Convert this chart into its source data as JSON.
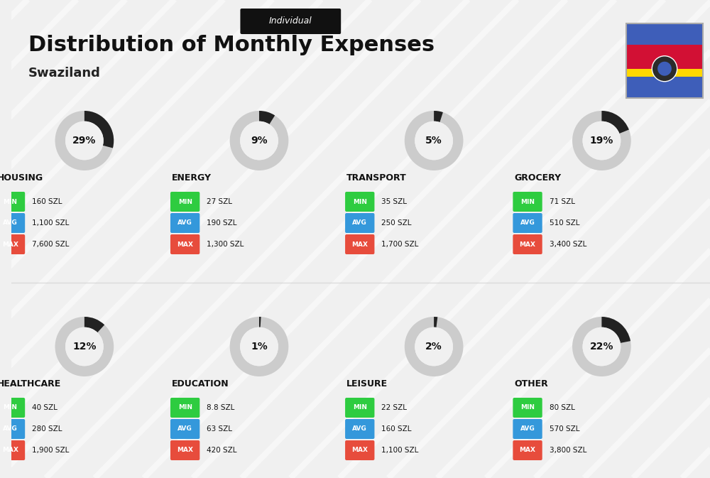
{
  "title": "Distribution of Monthly Expenses",
  "subtitle": "Swaziland",
  "tag": "Individual",
  "bg_color": "#f0f0f0",
  "categories": [
    {
      "name": "HOUSING",
      "pct": 29,
      "icon": "🏢",
      "min_val": "160 SZL",
      "avg_val": "1,100 SZL",
      "max_val": "7,600 SZL"
    },
    {
      "name": "ENERGY",
      "pct": 9,
      "icon": "⚡",
      "min_val": "27 SZL",
      "avg_val": "190 SZL",
      "max_val": "1,300 SZL"
    },
    {
      "name": "TRANSPORT",
      "pct": 5,
      "icon": "🚌",
      "min_val": "35 SZL",
      "avg_val": "250 SZL",
      "max_val": "1,700 SZL"
    },
    {
      "name": "GROCERY",
      "pct": 19,
      "icon": "🛒",
      "min_val": "71 SZL",
      "avg_val": "510 SZL",
      "max_val": "3,400 SZL"
    },
    {
      "name": "HEALTHCARE",
      "pct": 12,
      "icon": "❤️",
      "min_val": "40 SZL",
      "avg_val": "280 SZL",
      "max_val": "1,900 SZL"
    },
    {
      "name": "EDUCATION",
      "pct": 1,
      "icon": "🎓",
      "min_val": "8.8 SZL",
      "avg_val": "63 SZL",
      "max_val": "420 SZL"
    },
    {
      "name": "LEISURE",
      "pct": 2,
      "icon": "🛍️",
      "min_val": "22 SZL",
      "avg_val": "160 SZL",
      "max_val": "1,100 SZL"
    },
    {
      "name": "OTHER",
      "pct": 22,
      "icon": "👜",
      "min_val": "80 SZL",
      "avg_val": "570 SZL",
      "max_val": "3,800 SZL"
    }
  ],
  "color_min": "#2ecc40",
  "color_avg": "#3498db",
  "color_max": "#e74c3c",
  "label_color": "#ffffff",
  "arc_color_dark": "#222222",
  "arc_color_light": "#cccccc",
  "title_color": "#111111",
  "subtitle_color": "#222222",
  "tag_bg": "#111111",
  "tag_fg": "#ffffff"
}
